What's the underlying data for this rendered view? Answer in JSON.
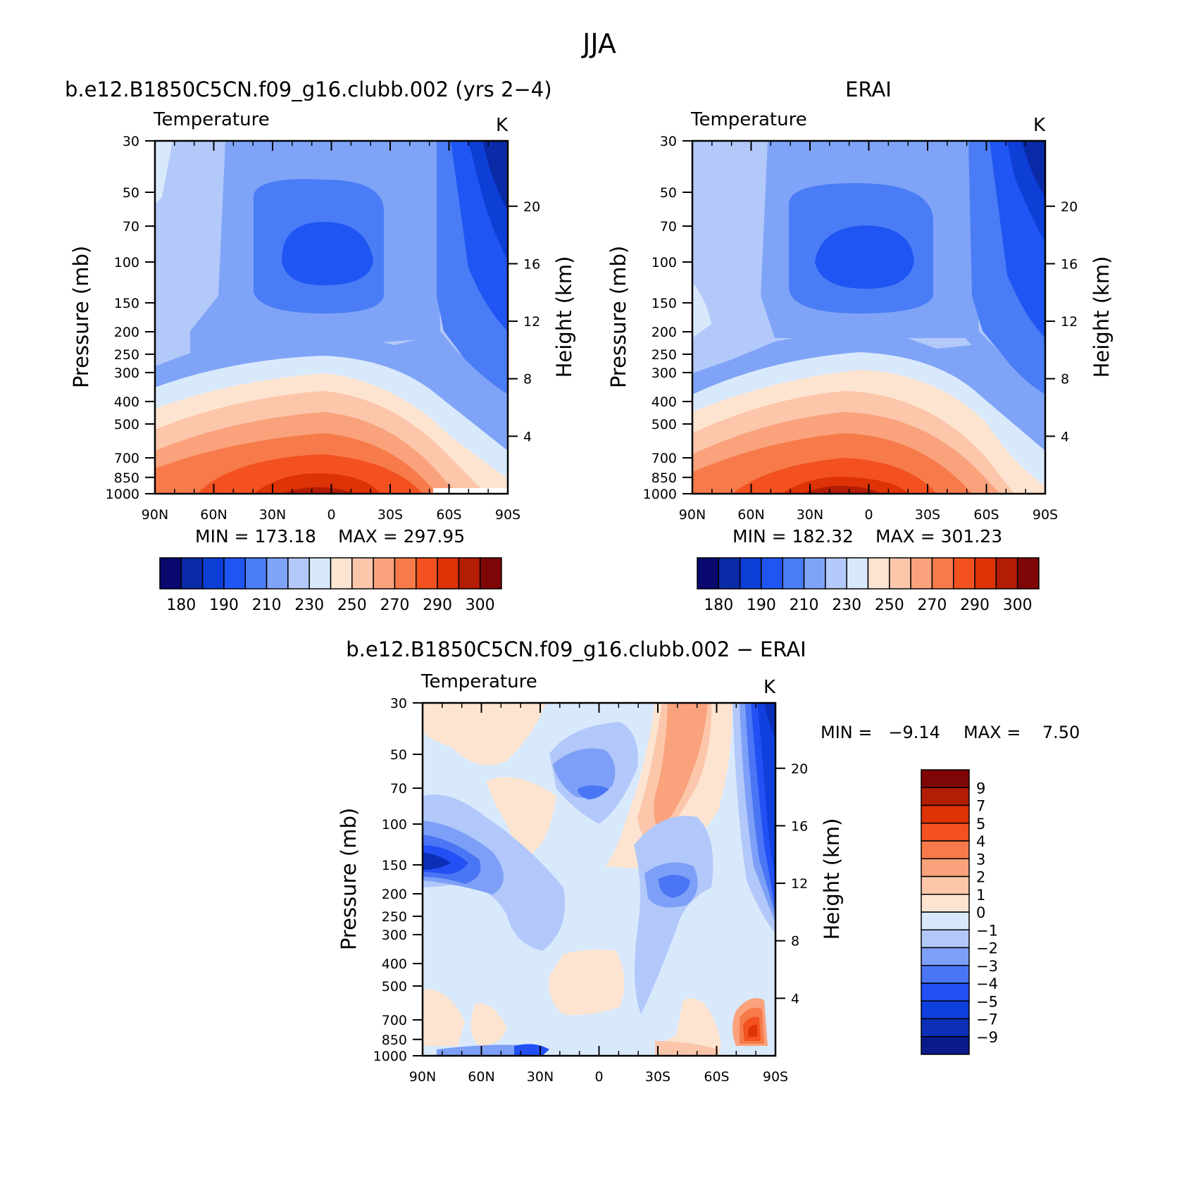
{
  "figure_title": "JJA",
  "colors": {
    "abs_palette": [
      "#08086e",
      "#0a2aa8",
      "#0d3fd6",
      "#1f55f2",
      "#4a7cf5",
      "#7fa4f7",
      "#b3c9fa",
      "#d9e9fc",
      "#fde4d0",
      "#fcc6ab",
      "#f9a27c",
      "#f77b4a",
      "#f35120",
      "#de3207",
      "#b31c05",
      "#7e0606"
    ],
    "diff_palette": [
      "#0a1a8a",
      "#0d2fb8",
      "#0f40de",
      "#2250f5",
      "#4a76f5",
      "#7d9ff7",
      "#b2c8fa",
      "#d9e9fc",
      "#fde4d0",
      "#fcc6ab",
      "#f9a27c",
      "#f77b4a",
      "#f35120",
      "#de3207",
      "#b31c05",
      "#7e0606"
    ]
  },
  "chart_data": [
    {
      "type": "heatmap",
      "panel_title": "b.e12.B1850C5CN.f09_g16.clubb.002 (yrs 2−4)",
      "variable": "Temperature",
      "units": "K",
      "xlabel": "",
      "ylabel": "Pressure (mb)",
      "y2label": "Height (km)",
      "x_ticks": [
        "90N",
        "60N",
        "30N",
        "0",
        "30S",
        "60S",
        "90S"
      ],
      "y_ticks": [
        "30",
        "50",
        "70",
        "100",
        "150",
        "200",
        "250",
        "300",
        "400",
        "500",
        "700",
        "850",
        "1000"
      ],
      "y2_ticks": [
        "20",
        "16",
        "12",
        "8",
        "4"
      ],
      "ylim": [
        1000,
        30
      ],
      "min_label": "MIN = 173.18",
      "max_label": "MAX = 297.95",
      "colorbar_ticks": [
        "180",
        "190",
        "210",
        "230",
        "250",
        "270",
        "290",
        "300"
      ],
      "colorbar_levels": [
        175,
        180,
        185,
        190,
        200,
        210,
        220,
        230,
        240,
        250,
        260,
        270,
        280,
        290,
        295,
        300
      ]
    },
    {
      "type": "heatmap",
      "panel_title": "ERAI",
      "variable": "Temperature",
      "units": "K",
      "xlabel": "",
      "ylabel": "Pressure (mb)",
      "y2label": "Height (km)",
      "x_ticks": [
        "90N",
        "60N",
        "30N",
        "0",
        "30S",
        "60S",
        "90S"
      ],
      "y_ticks": [
        "30",
        "50",
        "70",
        "100",
        "150",
        "200",
        "250",
        "300",
        "400",
        "500",
        "700",
        "850",
        "1000"
      ],
      "y2_ticks": [
        "20",
        "16",
        "12",
        "8",
        "4"
      ],
      "ylim": [
        1000,
        30
      ],
      "min_label": "MIN = 182.32",
      "max_label": "MAX = 301.23",
      "colorbar_ticks": [
        "180",
        "190",
        "210",
        "230",
        "250",
        "270",
        "290",
        "300"
      ],
      "colorbar_levels": [
        175,
        180,
        185,
        190,
        200,
        210,
        220,
        230,
        240,
        250,
        260,
        270,
        280,
        290,
        295,
        300
      ]
    },
    {
      "type": "heatmap",
      "panel_title": "b.e12.B1850C5CN.f09_g16.clubb.002 − ERAI",
      "variable": "Temperature",
      "units": "K",
      "xlabel": "",
      "ylabel": "Pressure (mb)",
      "y2label": "Height (km)",
      "x_ticks": [
        "90N",
        "60N",
        "30N",
        "0",
        "30S",
        "60S",
        "90S"
      ],
      "y_ticks": [
        "30",
        "50",
        "70",
        "100",
        "150",
        "200",
        "250",
        "300",
        "400",
        "500",
        "700",
        "850",
        "1000"
      ],
      "y2_ticks": [
        "20",
        "16",
        "12",
        "8",
        "4"
      ],
      "ylim": [
        1000,
        30
      ],
      "min_label": "MIN =   −9.14",
      "max_label": "MAX =    7.50",
      "colorbar_ticks": [
        "9",
        "7",
        "5",
        "4",
        "3",
        "2",
        "1",
        "0",
        "−1",
        "−2",
        "−3",
        "−4",
        "−5",
        "−7",
        "−9"
      ],
      "colorbar_levels": [
        -9,
        -7,
        -5,
        -4,
        -3,
        -2,
        -1,
        0,
        1,
        2,
        3,
        4,
        5,
        7,
        9
      ]
    }
  ]
}
